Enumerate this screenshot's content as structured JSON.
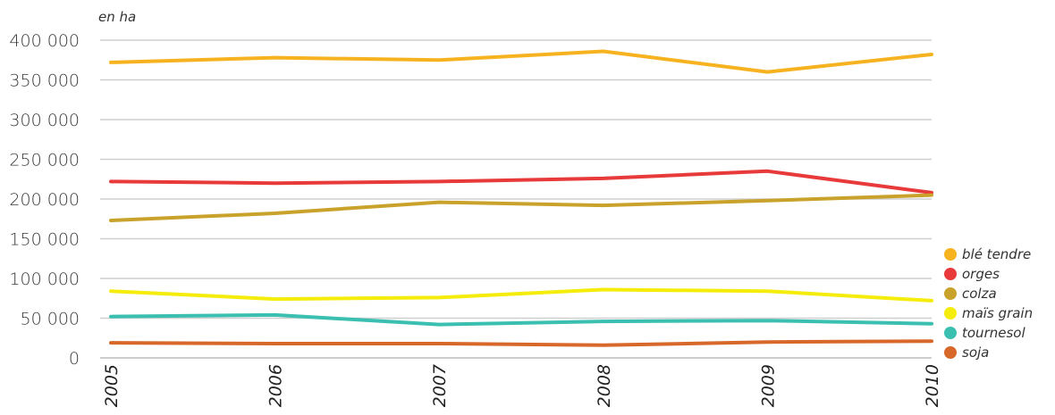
{
  "chart_data": {
    "type": "line",
    "unit_label": "en ha",
    "x": [
      "2005",
      "2006",
      "2007",
      "2008",
      "2009",
      "2010"
    ],
    "ylim": [
      0,
      400000
    ],
    "yticks": [
      0,
      50000,
      100000,
      150000,
      200000,
      250000,
      300000,
      350000,
      400000
    ],
    "ytick_labels": [
      "0",
      "50 000",
      "100 000",
      "150 000",
      "200 000",
      "250 000",
      "300 000",
      "350 000",
      "400 000"
    ],
    "grid": true,
    "legend_position": "right",
    "series": [
      {
        "name": "blé tendre",
        "color": "#f7b220",
        "values": [
          372000,
          378000,
          375000,
          386000,
          360000,
          382000
        ]
      },
      {
        "name": "orges",
        "color": "#e83a3a",
        "values": [
          222000,
          220000,
          222000,
          226000,
          235000,
          208000
        ]
      },
      {
        "name": "colza",
        "color": "#c9a22b",
        "values": [
          173000,
          182000,
          196000,
          192000,
          198000,
          205000
        ]
      },
      {
        "name": "maïs grain",
        "color": "#f5ec0a",
        "values": [
          84000,
          74000,
          76000,
          86000,
          84000,
          72000
        ]
      },
      {
        "name": "tournesol",
        "color": "#3bbfb0",
        "values": [
          52000,
          54000,
          42000,
          46000,
          47000,
          43000
        ]
      },
      {
        "name": "soja",
        "color": "#d8682a",
        "values": [
          19000,
          18000,
          18000,
          16000,
          20000,
          21000
        ]
      }
    ]
  }
}
